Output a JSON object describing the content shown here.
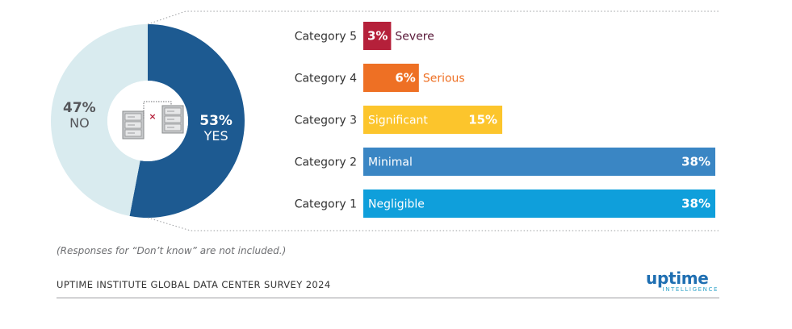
{
  "chart_data": [
    {
      "type": "pie",
      "slices": [
        {
          "label": "YES",
          "value": 53,
          "value_label": "53%",
          "color": "#1d5a91"
        },
        {
          "label": "NO",
          "value": 47,
          "value_label": "47%",
          "color": "#d9ebef"
        }
      ],
      "icon": "server-disconnect-icon"
    },
    {
      "type": "bar",
      "orientation": "horizontal",
      "categories": [
        "Category 5",
        "Category 4",
        "Category 3",
        "Category 2",
        "Category 1"
      ],
      "values": [
        3,
        6,
        15,
        38,
        38
      ],
      "value_labels": [
        "3%",
        "6%",
        "15%",
        "38%",
        "38%"
      ],
      "bar_labels": [
        "Severe",
        "Serious",
        "Significant",
        "Minimal",
        "Negligible"
      ],
      "colors": [
        "#b5203a",
        "#ee7024",
        "#fcc52c",
        "#3a86c4",
        "#0f9fdb"
      ],
      "xlim": [
        0,
        38
      ]
    }
  ],
  "note": "(Responses for “Don’t know” are not included.)",
  "source": "UPTIME INSTITUTE GLOBAL DATA CENTER SURVEY 2024",
  "brand": {
    "main": "uptime",
    "sub": "INTELLIGENCE"
  }
}
